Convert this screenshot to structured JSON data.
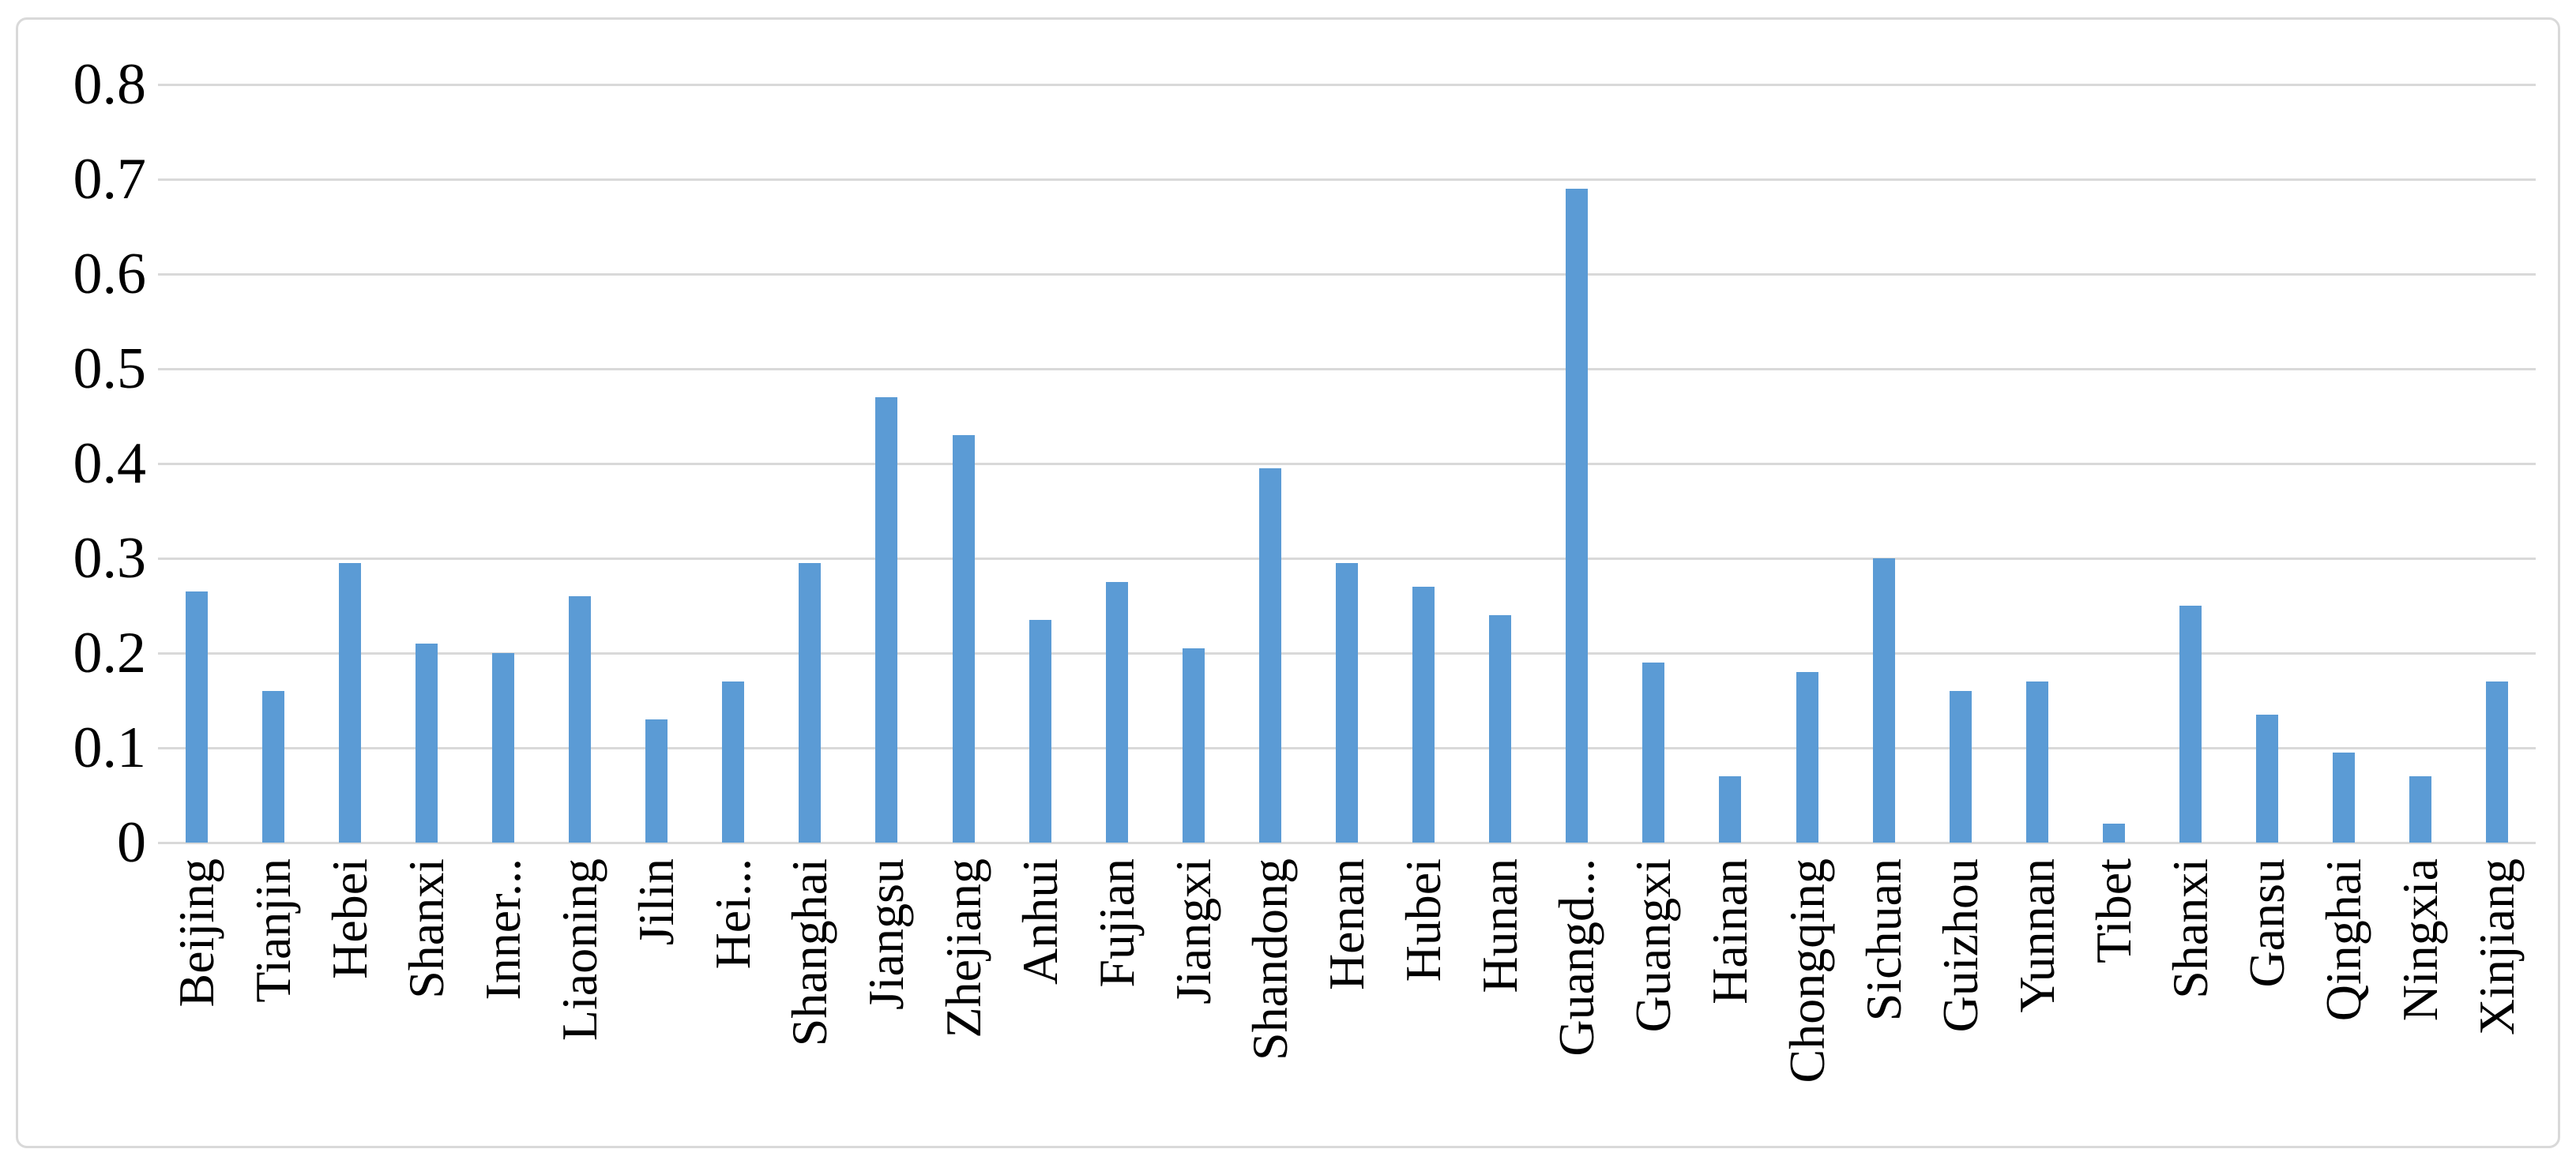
{
  "chart_data": {
    "type": "bar",
    "title": "",
    "xlabel": "",
    "ylabel": "",
    "categories": [
      "Beijing",
      "Tianjin",
      "Hebei",
      "Shanxi",
      "Inner...",
      "Liaoning",
      "Jilin",
      "Hei...",
      "Shanghai",
      "Jiangsu",
      "Zhejiang",
      "Anhui",
      "Fujian",
      "Jiangxi",
      "Shandong",
      "Henan",
      "Hubei",
      "Hunan",
      "Guangd...",
      "Guangxi",
      "Hainan",
      "Chongqing",
      "Sichuan",
      "Guizhou",
      "Yunnan",
      "Tibet",
      "Shanxi",
      "Gansu",
      "Qinghai",
      "Ningxia",
      "Xinjiang"
    ],
    "values": [
      0.265,
      0.16,
      0.295,
      0.21,
      0.2,
      0.26,
      0.13,
      0.17,
      0.295,
      0.47,
      0.43,
      0.235,
      0.275,
      0.205,
      0.395,
      0.295,
      0.27,
      0.24,
      0.69,
      0.19,
      0.07,
      0.18,
      0.3,
      0.16,
      0.17,
      0.02,
      0.25,
      0.135,
      0.095,
      0.07,
      0.17
    ],
    "ylim": [
      0,
      0.8
    ],
    "ytick_step": 0.1,
    "ytick_labels": [
      "0",
      "0.1",
      "0.2",
      "0.3",
      "0.4",
      "0.5",
      "0.6",
      "0.7",
      "0.8"
    ],
    "grid": true,
    "legend": "none",
    "bar_color": "#5b9bd5",
    "gridline_color": "#d9d9d9",
    "frame_border_color": "#d9d9d9",
    "text_color": "#000000",
    "background_color": "#ffffff"
  }
}
